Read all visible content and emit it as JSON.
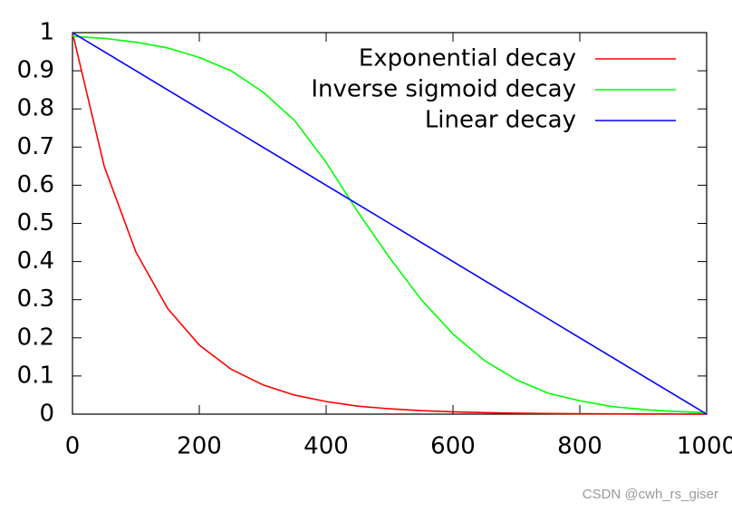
{
  "chart_data": {
    "type": "line",
    "x": [
      0,
      50,
      100,
      150,
      200,
      250,
      300,
      350,
      400,
      450,
      500,
      550,
      600,
      650,
      700,
      750,
      800,
      850,
      900,
      950,
      1000
    ],
    "series": [
      {
        "name": "Exponential decay",
        "color": "#ff0000",
        "values": [
          1,
          0.65,
          0.425,
          0.277,
          0.181,
          0.118,
          0.077,
          0.05,
          0.033,
          0.021,
          0.014,
          0.009,
          0.006,
          0.004,
          0.0025,
          0.0016,
          0.001,
          0.0007,
          0.0005,
          0.0003,
          0.0002
        ]
      },
      {
        "name": "Inverse sigmoid decay",
        "color": "#00ff00",
        "values": [
          0.99,
          0.985,
          0.975,
          0.96,
          0.935,
          0.9,
          0.845,
          0.77,
          0.66,
          0.53,
          0.41,
          0.3,
          0.21,
          0.14,
          0.09,
          0.055,
          0.035,
          0.02,
          0.012,
          0.007,
          0.004
        ]
      },
      {
        "name": "Linear decay",
        "color": "#0000ff",
        "values": [
          1,
          0.95,
          0.9,
          0.85,
          0.8,
          0.75,
          0.7,
          0.65,
          0.6,
          0.55,
          0.5,
          0.45,
          0.4,
          0.35,
          0.3,
          0.25,
          0.2,
          0.15,
          0.1,
          0.05,
          0
        ]
      }
    ],
    "xlim": [
      0,
      1000
    ],
    "xticks": [
      0,
      200,
      400,
      600,
      800,
      1000
    ],
    "ylim": [
      0,
      1
    ],
    "yticks": [
      0,
      0.1,
      0.2,
      0.3,
      0.4,
      0.5,
      0.6,
      0.7,
      0.8,
      0.9,
      1
    ],
    "legend": "top-right",
    "grid": false
  },
  "watermark": "CSDN @cwh_rs_giser"
}
